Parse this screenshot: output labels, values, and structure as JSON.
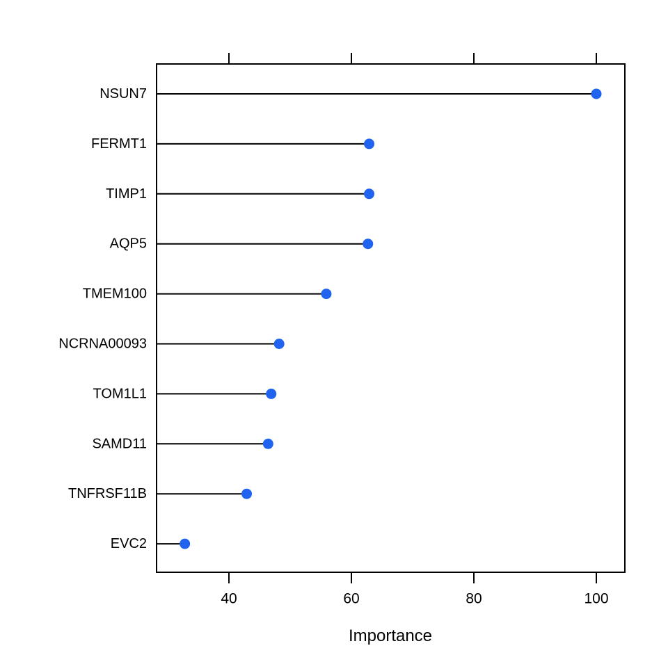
{
  "chart_data": {
    "type": "scatter",
    "variant": "cleveland-dotchart",
    "title": "",
    "xlabel": "Importance",
    "ylabel": "",
    "categories": [
      "NSUN7",
      "FERMT1",
      "TIMP1",
      "AQP5",
      "TMEM100",
      "NCRNA00093",
      "TOM1L1",
      "SAMD11",
      "TNFRSF11B",
      "EVC2"
    ],
    "values": [
      100,
      62.9,
      62.9,
      62.7,
      55.9,
      48.2,
      46.9,
      46.4,
      42.9,
      32.8
    ],
    "x_ticks": [
      40,
      60,
      80,
      100
    ],
    "xlim": [
      28.2,
      104.7
    ],
    "grid": false,
    "legend": null,
    "point_color": "#1f63ee",
    "line_color": "#000000",
    "frame_color": "#000000"
  }
}
